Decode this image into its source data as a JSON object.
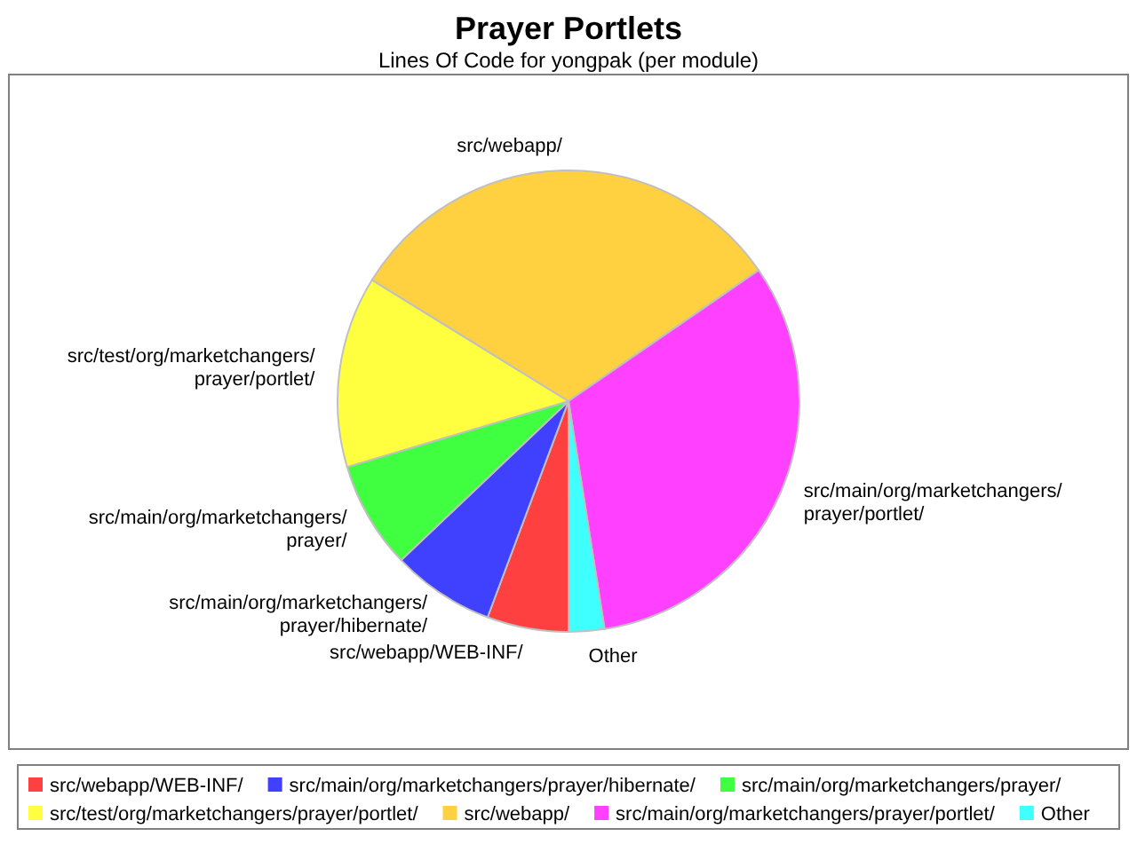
{
  "chart_data": {
    "type": "pie",
    "title": "Prayer Portlets",
    "subtitle": "Lines Of Code for yongpak (per module)",
    "categories": [
      "src/webapp/WEB-INF/",
      "src/main/org/marketchangers/prayer/hibernate/",
      "src/main/org/marketchangers/prayer/",
      "src/test/org/marketchangers/prayer/portlet/",
      "src/webapp/",
      "src/main/org/marketchangers/prayer/portlet/",
      "Other"
    ],
    "values": [
      5.7,
      7.2,
      7.5,
      13.4,
      31.6,
      32.1,
      2.5
    ],
    "colors": [
      "#ff4040",
      "#4040ff",
      "#40ff40",
      "#ffff40",
      "#ffd040",
      "#ff40ff",
      "#40ffff"
    ],
    "legend": "bottom"
  }
}
